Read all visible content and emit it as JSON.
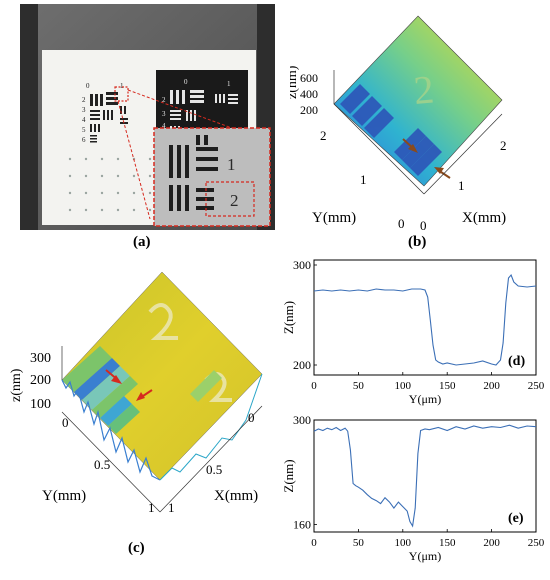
{
  "panel_a": {
    "caption": "(a)",
    "target_group_labels": [
      "0",
      "2",
      "3",
      "4",
      "5",
      "6",
      "1"
    ],
    "dark_card_labels": [
      "0",
      "1",
      "2",
      "3",
      "4",
      "5"
    ],
    "inset_labels": [
      "1",
      "2"
    ]
  },
  "panel_b": {
    "caption": "(b)",
    "zlabel": "z(nm)",
    "zticks": [
      "600",
      "400",
      "200"
    ],
    "ylabel": "Y(mm)",
    "yticks": [
      "2",
      "1",
      "0"
    ],
    "xlabel": "X(mm)",
    "xticks": [
      "0",
      "1",
      "2"
    ]
  },
  "panel_c": {
    "caption": "(c)",
    "zlabel": "z(nm)",
    "zticks": [
      "300",
      "200",
      "100"
    ],
    "ylabel": "Y(mm)",
    "yticks": [
      "0",
      "0.5",
      "1"
    ],
    "xlabel": "X(mm)",
    "xticks": [
      "0",
      "0.5",
      "1"
    ]
  },
  "colors": {
    "line": "#3b6fb6",
    "arrow_red": "#d62a1f",
    "arrow_brown": "#8a4a1c",
    "surface_yellow": "#d9d12a",
    "surface_green": "#7cc46a",
    "surface_blue": "#3a7fd0"
  },
  "chart_data": [
    {
      "panel": "(d)",
      "type": "line",
      "xlabel": "Y(μm)",
      "ylabel": "Z(nm)",
      "xlim": [
        0,
        250
      ],
      "ylim": [
        190,
        305
      ],
      "xticks": [
        "0",
        "50",
        "100",
        "150",
        "200",
        "250"
      ],
      "yticks": [
        "200",
        "300"
      ],
      "x": [
        0,
        10,
        20,
        30,
        40,
        50,
        60,
        70,
        80,
        90,
        100,
        110,
        120,
        125,
        128,
        131,
        134,
        137,
        140,
        145,
        150,
        160,
        170,
        180,
        190,
        200,
        205,
        210,
        213,
        216,
        219,
        222,
        225,
        230,
        240,
        250
      ],
      "y": [
        274,
        275,
        274,
        275,
        274,
        275,
        274,
        276,
        275,
        275,
        274,
        276,
        276,
        275,
        268,
        245,
        220,
        205,
        203,
        201,
        202,
        200,
        201,
        202,
        204,
        201,
        200,
        205,
        222,
        262,
        287,
        290,
        283,
        279,
        278,
        279
      ]
    },
    {
      "panel": "(e)",
      "type": "line",
      "xlabel": "Y(μm)",
      "ylabel": "Z(nm)",
      "xlim": [
        0,
        250
      ],
      "ylim": [
        150,
        300
      ],
      "xticks": [
        "0",
        "50",
        "100",
        "150",
        "200",
        "250"
      ],
      "yticks": [
        "160",
        "300"
      ],
      "x": [
        0,
        5,
        10,
        15,
        20,
        25,
        30,
        35,
        38,
        41,
        44,
        47,
        50,
        55,
        60,
        65,
        70,
        75,
        80,
        85,
        90,
        95,
        100,
        105,
        108,
        111,
        114,
        117,
        120,
        125,
        130,
        140,
        150,
        160,
        170,
        180,
        190,
        200,
        210,
        220,
        230,
        240,
        250
      ],
      "y": [
        285,
        288,
        286,
        289,
        287,
        290,
        286,
        289,
        285,
        260,
        215,
        212,
        210,
        206,
        200,
        195,
        192,
        188,
        196,
        190,
        182,
        190,
        184,
        178,
        164,
        158,
        182,
        255,
        286,
        288,
        287,
        290,
        286,
        291,
        288,
        292,
        289,
        291,
        290,
        293,
        289,
        292,
        291
      ]
    }
  ]
}
